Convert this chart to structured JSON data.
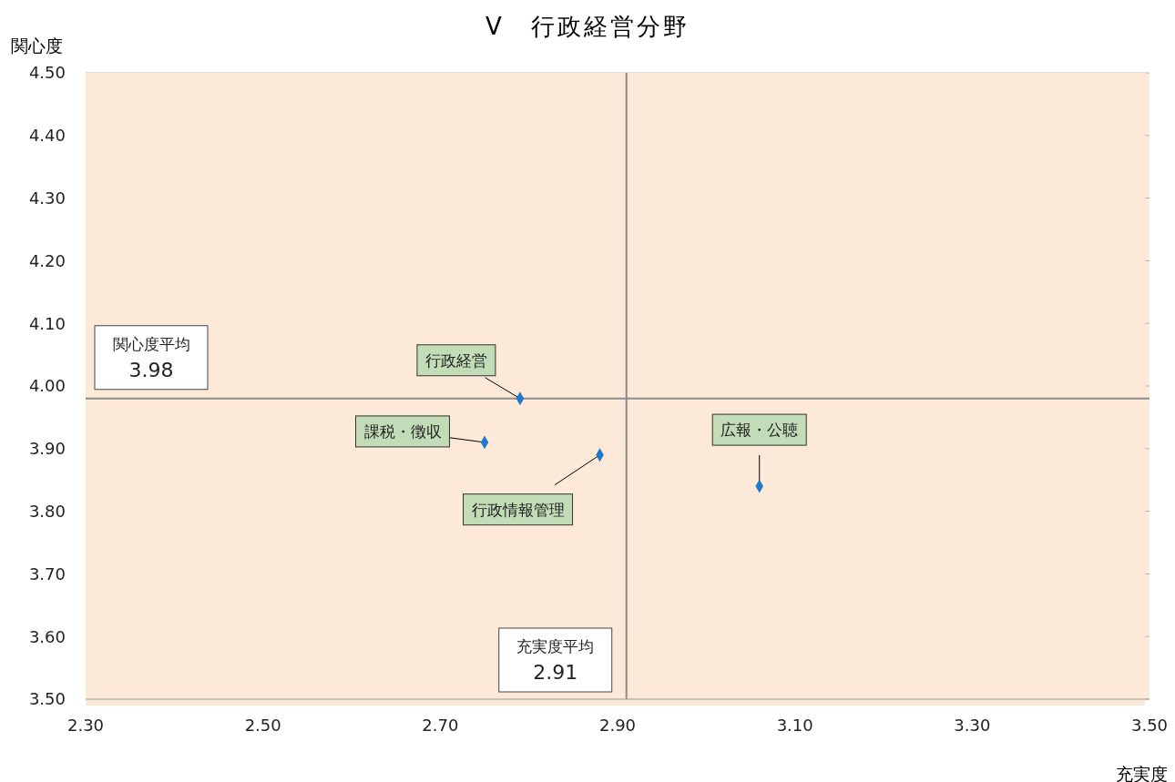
{
  "chart_data": {
    "type": "scatter",
    "title": "V　行政経営分野",
    "xlabel": "充実度",
    "ylabel": "関心度",
    "x": [
      2.79,
      2.75,
      2.88,
      3.06
    ],
    "values": [
      3.98,
      3.91,
      3.89,
      3.84
    ],
    "color": "#1f78c8",
    "marker": "diamond",
    "grid": "y",
    "legend": false,
    "xlim": [
      2.3,
      3.5
    ],
    "xticks": [
      {
        "value": 2.3,
        "label": "2.30"
      },
      {
        "value": 2.5,
        "label": "2.50"
      },
      {
        "value": 2.7,
        "label": "2.70"
      },
      {
        "value": 2.9,
        "label": "2.90"
      },
      {
        "value": 3.1,
        "label": "3.10"
      },
      {
        "value": 3.3,
        "label": "3.30"
      },
      {
        "value": 3.5,
        "label": "3.50"
      }
    ],
    "ylim": [
      3.5,
      4.5
    ],
    "yticks": [
      {
        "value": 3.5,
        "label": "3.50"
      },
      {
        "value": 3.6,
        "label": "3.60"
      },
      {
        "value": 3.7,
        "label": "3.70"
      },
      {
        "value": 3.8,
        "label": "3.80"
      },
      {
        "value": 3.9,
        "label": "3.90"
      },
      {
        "value": 4.0,
        "label": "4.00"
      },
      {
        "value": 4.1,
        "label": "4.10"
      },
      {
        "value": 4.2,
        "label": "4.20"
      },
      {
        "value": 4.3,
        "label": "4.30"
      },
      {
        "value": 4.4,
        "label": "4.40"
      },
      {
        "value": 4.5,
        "label": "4.50"
      }
    ],
    "ref_lines": [
      {
        "axis": "x",
        "value": 2.91,
        "label": "充実度平均\n2.91",
        "color": "#8c8c8c"
      },
      {
        "axis": "y",
        "value": 3.98,
        "label": "関心度平均\n3.98",
        "color": "#8c8c8c"
      }
    ],
    "annotations": [
      {
        "text": "行政経営",
        "x": 2.79,
        "y": 3.98
      },
      {
        "text": "課税・徴収",
        "x": 2.75,
        "y": 3.91
      },
      {
        "text": "行政情報管理",
        "x": 2.88,
        "y": 3.89
      },
      {
        "text": "広報・公聴",
        "x": 3.06,
        "y": 3.84
      }
    ]
  }
}
